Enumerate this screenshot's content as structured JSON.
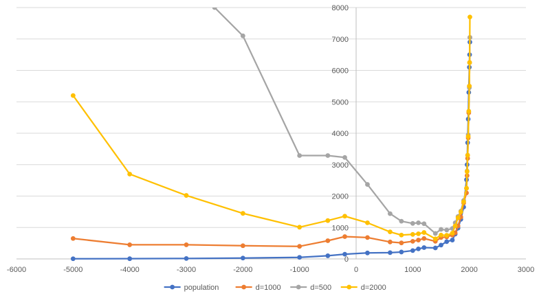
{
  "chart_data": {
    "type": "scatter",
    "title": "",
    "xlabel": "",
    "ylabel": "",
    "xlim": [
      -6000,
      3000
    ],
    "ylim": [
      0,
      8000
    ],
    "x_ticks": [
      -6000,
      -5000,
      -4000,
      -3000,
      -2000,
      -1000,
      0,
      1000,
      2000,
      3000
    ],
    "y_ticks": [
      0,
      1000,
      2000,
      3000,
      4000,
      5000,
      6000,
      7000,
      8000
    ],
    "x_tick_labels": [
      "-6000",
      "-5000",
      "-4000",
      "-3000",
      "-2000",
      "-1000",
      "0",
      "1000",
      "2000",
      "3000"
    ],
    "y_tick_labels": [
      "0",
      "1000",
      "2000",
      "3000",
      "4000",
      "5000",
      "6000",
      "7000",
      "8000"
    ],
    "legend_position": "bottom",
    "series": [
      {
        "name": "population",
        "color": "#4472C4",
        "points": [
          [
            -5000,
            5
          ],
          [
            -4000,
            7
          ],
          [
            -3000,
            14
          ],
          [
            -2000,
            27
          ],
          [
            -1000,
            50
          ],
          [
            -500,
            100
          ],
          [
            -200,
            150
          ],
          [
            200,
            190
          ],
          [
            600,
            200
          ],
          [
            800,
            220
          ],
          [
            1000,
            265
          ],
          [
            1100,
            320
          ],
          [
            1200,
            360
          ],
          [
            1400,
            350
          ],
          [
            1500,
            440
          ],
          [
            1600,
            550
          ],
          [
            1700,
            600
          ],
          [
            1750,
            790
          ],
          [
            1800,
            980
          ],
          [
            1850,
            1260
          ],
          [
            1900,
            1650
          ],
          [
            1950,
            2520
          ],
          [
            1960,
            3000
          ],
          [
            1970,
            3700
          ],
          [
            1980,
            4450
          ],
          [
            1990,
            5300
          ],
          [
            2000,
            6100
          ],
          [
            2005,
            6500
          ],
          [
            2010,
            6900
          ]
        ]
      },
      {
        "name": "d=1000",
        "color": "#ED7D31",
        "points": [
          [
            -5000,
            650
          ],
          [
            -4000,
            450
          ],
          [
            -3000,
            450
          ],
          [
            -2000,
            420
          ],
          [
            -1000,
            400
          ],
          [
            -500,
            580
          ],
          [
            -200,
            710
          ],
          [
            200,
            680
          ],
          [
            600,
            540
          ],
          [
            800,
            510
          ],
          [
            1000,
            560
          ],
          [
            1100,
            600
          ],
          [
            1200,
            650
          ],
          [
            1400,
            560
          ],
          [
            1500,
            680
          ],
          [
            1600,
            700
          ],
          [
            1700,
            760
          ],
          [
            1750,
            830
          ],
          [
            1800,
            1050
          ],
          [
            1850,
            1330
          ],
          [
            1900,
            1780
          ],
          [
            1950,
            2100
          ],
          [
            1960,
            2650
          ],
          [
            1970,
            3200
          ],
          [
            1980,
            3850
          ],
          [
            1990,
            4650
          ],
          [
            2000,
            5500
          ],
          [
            2005,
            6250
          ],
          [
            2010,
            7050
          ]
        ]
      },
      {
        "name": "d=500",
        "color": "#A5A5A5",
        "points": [
          [
            -2500,
            8000
          ],
          [
            -2000,
            7100
          ],
          [
            -1000,
            3290
          ],
          [
            -500,
            3290
          ],
          [
            -200,
            3230
          ],
          [
            200,
            2370
          ],
          [
            600,
            1440
          ],
          [
            800,
            1200
          ],
          [
            1000,
            1130
          ],
          [
            1100,
            1150
          ],
          [
            1200,
            1120
          ],
          [
            1400,
            810
          ],
          [
            1500,
            940
          ],
          [
            1600,
            920
          ],
          [
            1700,
            970
          ],
          [
            1750,
            1150
          ],
          [
            1800,
            1350
          ],
          [
            1850,
            1520
          ],
          [
            1900,
            1860
          ],
          [
            1950,
            2250
          ],
          [
            1960,
            2800
          ],
          [
            1970,
            3300
          ],
          [
            1980,
            3950
          ],
          [
            1990,
            4700
          ],
          [
            2000,
            5450
          ],
          [
            2005,
            6250
          ],
          [
            2010,
            7050
          ]
        ]
      },
      {
        "name": "d=2000",
        "color": "#FFC000",
        "points": [
          [
            -5000,
            5200
          ],
          [
            -4000,
            2700
          ],
          [
            -3000,
            2020
          ],
          [
            -2000,
            1450
          ],
          [
            -1000,
            1010
          ],
          [
            -500,
            1220
          ],
          [
            -200,
            1360
          ],
          [
            200,
            1150
          ],
          [
            600,
            860
          ],
          [
            800,
            760
          ],
          [
            1000,
            780
          ],
          [
            1100,
            800
          ],
          [
            1200,
            840
          ],
          [
            1400,
            640
          ],
          [
            1500,
            760
          ],
          [
            1600,
            750
          ],
          [
            1700,
            820
          ],
          [
            1750,
            1050
          ],
          [
            1800,
            1310
          ],
          [
            1850,
            1500
          ],
          [
            1900,
            1820
          ],
          [
            1950,
            2250
          ],
          [
            1960,
            2780
          ],
          [
            1970,
            3300
          ],
          [
            1980,
            3900
          ],
          [
            1990,
            4700
          ],
          [
            2000,
            5500
          ],
          [
            2005,
            6250
          ],
          [
            2010,
            7700
          ]
        ]
      }
    ]
  }
}
